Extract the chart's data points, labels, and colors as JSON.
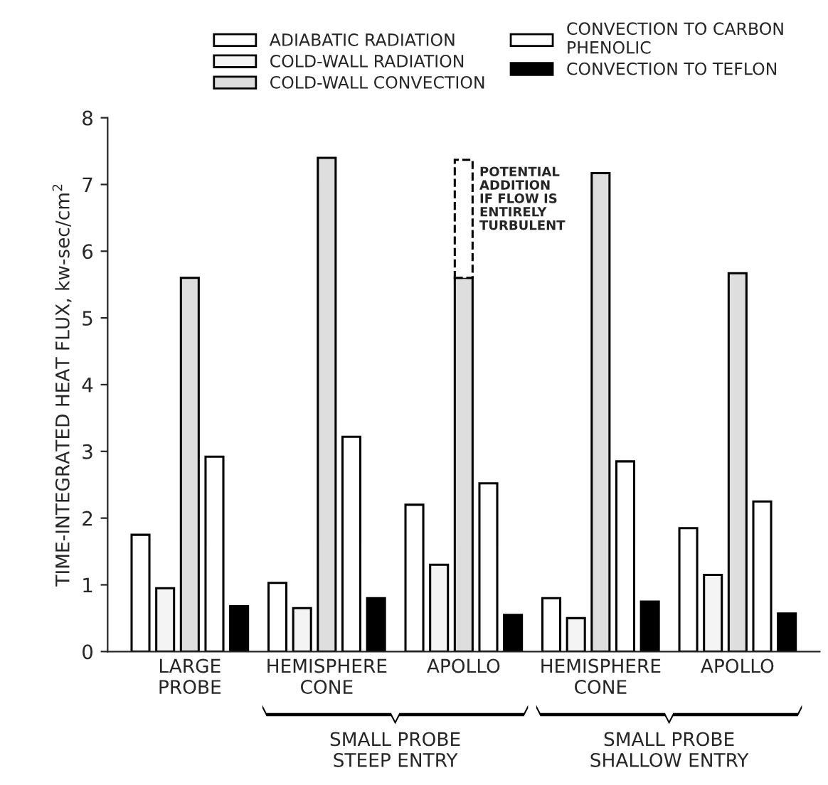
{
  "chart_data": {
    "type": "bar",
    "ylabel": "TIME-INTEGRATED HEAT FLUX, kw-sec/cm$^{2}$",
    "categories": [
      "LARGE\nPROBE",
      "HEMISPHERE\nCONE",
      "APOLLO",
      "HEMISPHERE\nCONE",
      "APOLLO"
    ],
    "series": [
      {
        "name": "ADIABATIC RADIATION",
        "color": "#ffffff",
        "values": [
          1.75,
          1.03,
          2.2,
          0.8,
          1.85
        ]
      },
      {
        "name": "COLD-WALL RADIATION",
        "color": "#f4f4f4",
        "values": [
          0.95,
          0.65,
          1.3,
          0.5,
          1.15
        ]
      },
      {
        "name": "COLD-WALL CONVECTION",
        "color": "#dedede",
        "values": [
          5.6,
          7.4,
          5.6,
          7.17,
          5.67
        ]
      },
      {
        "color": "#ffffff",
        "line_style": "dashed",
        "values": [
          null,
          null,
          1.77,
          null,
          null
        ],
        "base": [
          null,
          null,
          5.6,
          null,
          null
        ]
      },
      {
        "name": "CONVECTION TO CARBON\nPHENOLIC",
        "color": "#ffffff",
        "values": [
          2.92,
          3.22,
          2.52,
          2.85,
          2.25
        ]
      },
      {
        "name": "CONVECTION TO TEFLON",
        "color": "#000000",
        "values": [
          0.68,
          0.8,
          0.55,
          0.75,
          0.57
        ]
      }
    ],
    "ylim": [
      0,
      8
    ],
    "yticks": [
      0,
      1,
      2,
      3,
      4,
      5,
      6,
      7,
      8
    ],
    "grid": false,
    "legend": "top",
    "annotations": [
      "POTENTIAL\nADDITION\nIF FLOW IS\nENTIRELY\nTURBULENT",
      "SMALL PROBE\nSTEEP ENTRY",
      "SMALL PROBE\nSHALLOW ENTRY"
    ]
  }
}
